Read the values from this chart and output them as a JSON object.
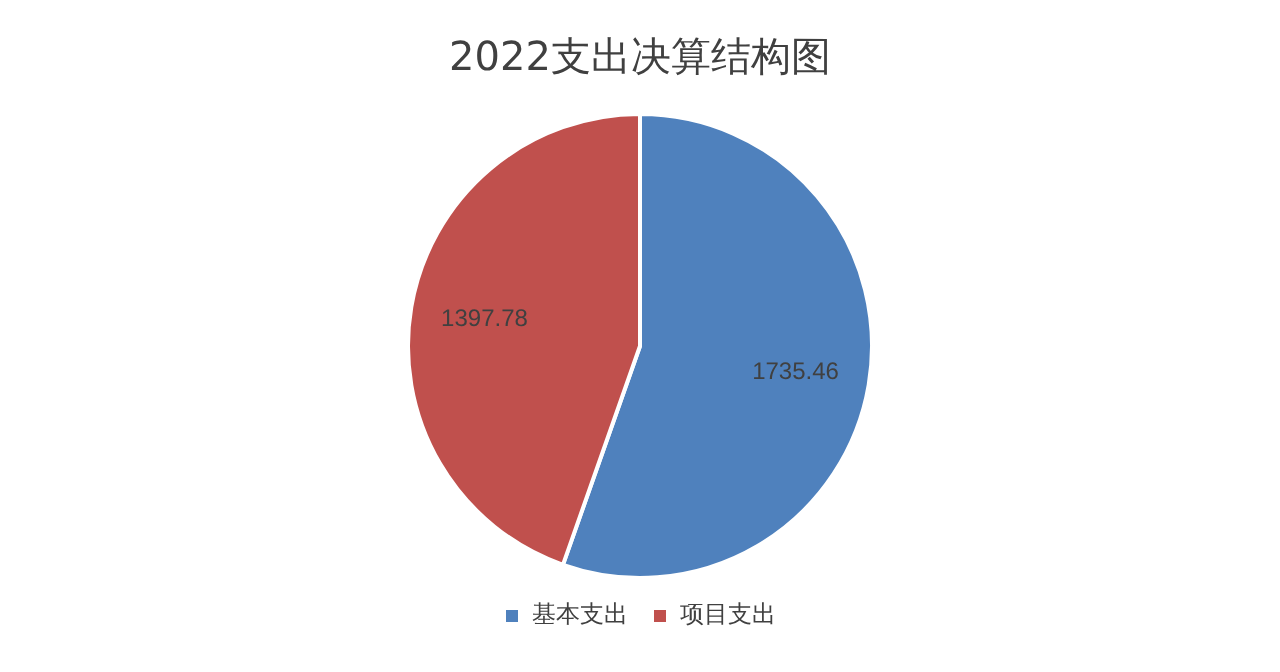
{
  "chart_data": {
    "type": "pie",
    "title": "2022支出决算结构图",
    "categories": [
      "基本支出",
      "项目支出"
    ],
    "values": [
      1735.46,
      1397.78
    ],
    "colors": [
      "#4f81bd",
      "#c0504d"
    ],
    "data_labels": true,
    "legend": "bottom"
  }
}
